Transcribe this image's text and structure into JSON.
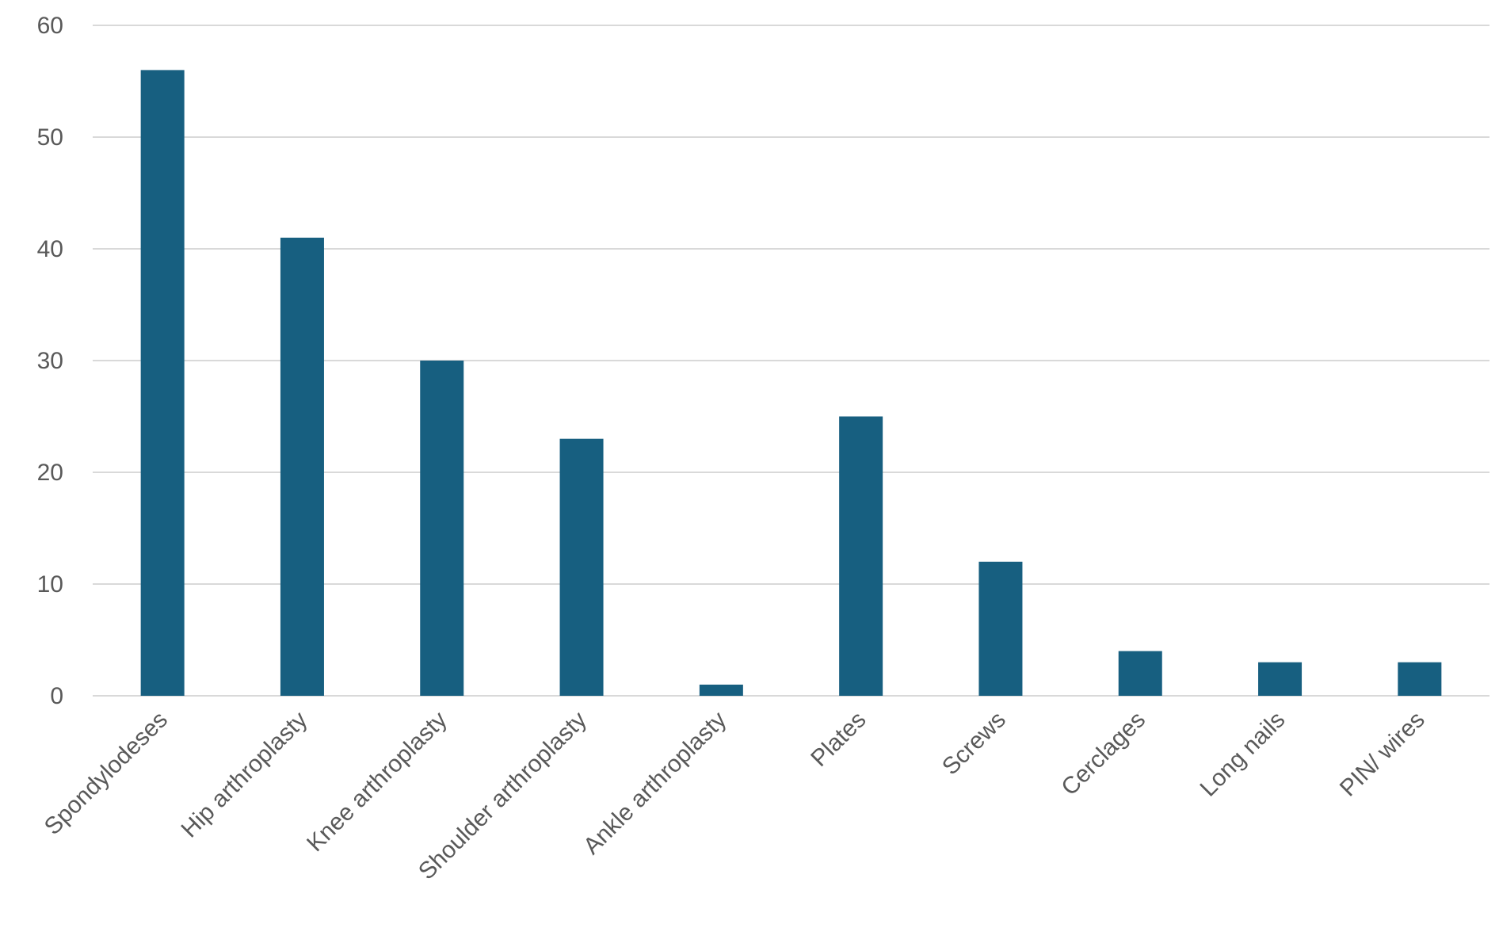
{
  "chart_data": {
    "type": "bar",
    "title": "",
    "xlabel": "",
    "ylabel": "",
    "ylim": [
      0,
      60
    ],
    "yticks": [
      0,
      10,
      20,
      30,
      40,
      50,
      60
    ],
    "grid": true,
    "legend": "none",
    "bar_color": "#175f80",
    "categories": [
      "Spondylodeses",
      "Hip arthroplasty",
      "Knee arthroplasty",
      "Shoulder arthroplasty",
      "Ankle arthroplasty",
      "Plates",
      "Screws",
      "Cerclages",
      "Long nails",
      "PIN/ wires"
    ],
    "values": [
      56,
      41,
      30,
      23,
      1,
      25,
      12,
      4,
      3,
      3
    ]
  }
}
